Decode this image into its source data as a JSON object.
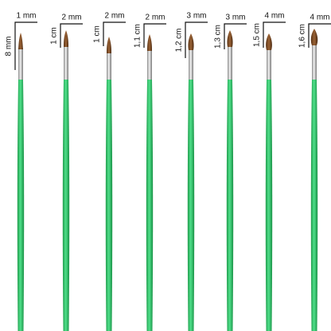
{
  "brushes": [
    {
      "width": "1 mm",
      "length": "8 mm"
    },
    {
      "width": "2 mm",
      "length": "1 cm"
    },
    {
      "width": "2 mm",
      "length": "1 cm"
    },
    {
      "width": "2 mm",
      "length": "1,1 cm"
    },
    {
      "width": "3 mm",
      "length": "1,2 cm"
    },
    {
      "width": "3 mm",
      "length": "1,3 cm"
    },
    {
      "width": "4 mm",
      "length": "1,5 cm"
    },
    {
      "width": "4 mm",
      "length": "1,6 cm"
    }
  ]
}
